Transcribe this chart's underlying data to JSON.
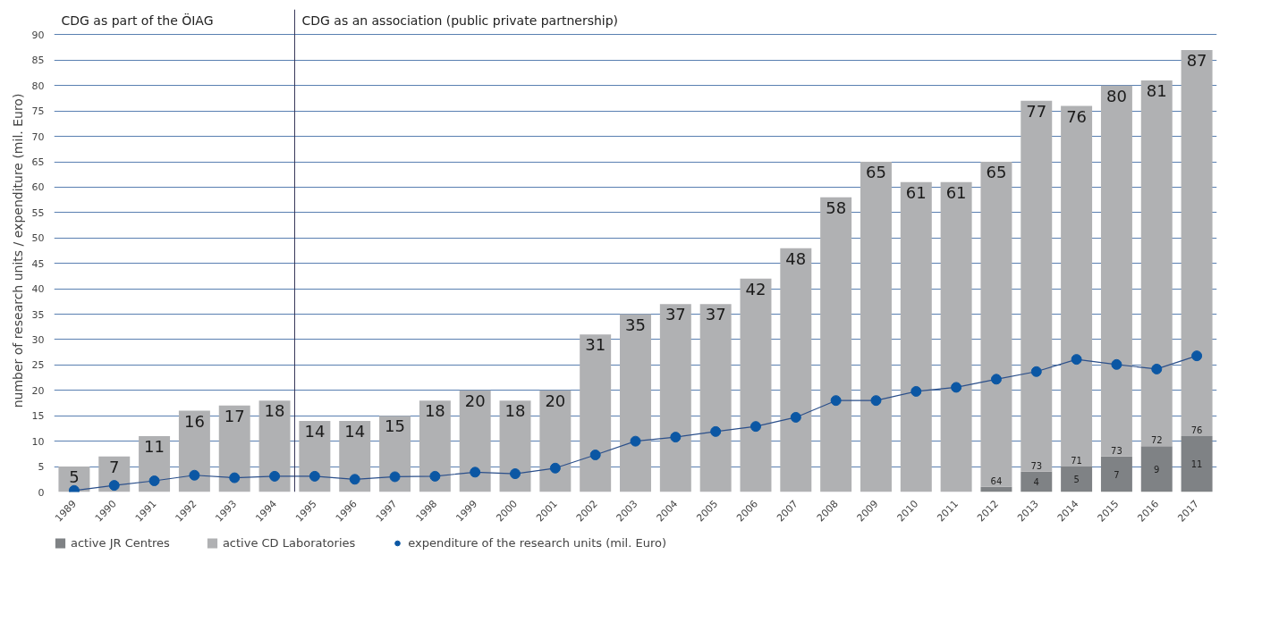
{
  "chart_data": {
    "type": "bar",
    "stacked": true,
    "ylabel": "number of research units / expenditure (mil. Euro)",
    "x": [
      1989,
      1990,
      1991,
      1992,
      1993,
      1994,
      1995,
      1996,
      1997,
      1998,
      1999,
      2000,
      2001,
      2002,
      2003,
      2004,
      2005,
      2006,
      2007,
      2008,
      2009,
      2010,
      2011,
      2012,
      2013,
      2014,
      2015,
      2016,
      2017
    ],
    "series": [
      {
        "name": "active JR Centres",
        "color": "#7f8285",
        "values": [
          null,
          null,
          null,
          null,
          null,
          null,
          null,
          null,
          null,
          null,
          null,
          null,
          null,
          null,
          null,
          null,
          null,
          null,
          null,
          null,
          null,
          null,
          null,
          1,
          4,
          5,
          7,
          9,
          11
        ],
        "value_labels": [
          null,
          null,
          null,
          null,
          null,
          null,
          null,
          null,
          null,
          null,
          null,
          null,
          null,
          null,
          null,
          null,
          null,
          null,
          null,
          null,
          null,
          null,
          null,
          null,
          "4",
          "5",
          "7",
          "9",
          "11"
        ]
      },
      {
        "name": "active CD Laboratories",
        "color": "#b0b1b3",
        "values": [
          5,
          7,
          11,
          16,
          17,
          18,
          14,
          14,
          15,
          18,
          20,
          18,
          20,
          31,
          35,
          37,
          37,
          42,
          48,
          58,
          65,
          61,
          61,
          64,
          73,
          71,
          73,
          72,
          76
        ],
        "value_labels": [
          null,
          null,
          null,
          null,
          null,
          null,
          null,
          null,
          null,
          null,
          null,
          null,
          null,
          null,
          null,
          null,
          null,
          null,
          null,
          null,
          null,
          null,
          null,
          "64",
          "73",
          "71",
          "73",
          "72",
          "76"
        ]
      },
      {
        "name": "expenditure of the research units (mil. Euro)",
        "type": "line",
        "marker": "circle",
        "color": "#0b57a4",
        "values": [
          0.3,
          1.3,
          2.2,
          3.3,
          2.8,
          3.1,
          3.1,
          2.5,
          3.0,
          3.1,
          3.9,
          3.6,
          4.7,
          7.3,
          10,
          10.8,
          11.9,
          12.9,
          14.7,
          18,
          18,
          19.8,
          20.6,
          22.2,
          23.7,
          26.1,
          25.1,
          24.2,
          26.8
        ]
      }
    ],
    "totals": [
      "5",
      "7",
      "11",
      "16",
      "17",
      "18",
      "14",
      "14",
      "15",
      "18",
      "20",
      "18",
      "20",
      "31",
      "35",
      "37",
      "37",
      "42",
      "48",
      "58",
      "65",
      "61",
      "61",
      "65",
      "77",
      "76",
      "80",
      "81",
      "87"
    ],
    "ref_lines": [
      {
        "axis": "x",
        "value": 1994.5,
        "color": "#333355"
      }
    ],
    "annotations": [
      "CDG as part of the ÖIAG",
      "CDG as an association (public private partnership)"
    ],
    "xlim": [
      1988.5,
      2017.5
    ],
    "xticks": [
      1989,
      1990,
      1991,
      1992,
      1993,
      1994,
      1995,
      1996,
      1997,
      1998,
      1999,
      2000,
      2001,
      2002,
      2003,
      2004,
      2005,
      2006,
      2007,
      2008,
      2009,
      2010,
      2011,
      2012,
      2013,
      2014,
      2015,
      2016,
      2017
    ],
    "ylim": [
      0,
      95
    ],
    "yticks": [
      0,
      5,
      10,
      15,
      20,
      25,
      30,
      35,
      40,
      45,
      50,
      55,
      60,
      65,
      70,
      75,
      80,
      85,
      90
    ],
    "grid": "y",
    "legend": "bottom"
  }
}
